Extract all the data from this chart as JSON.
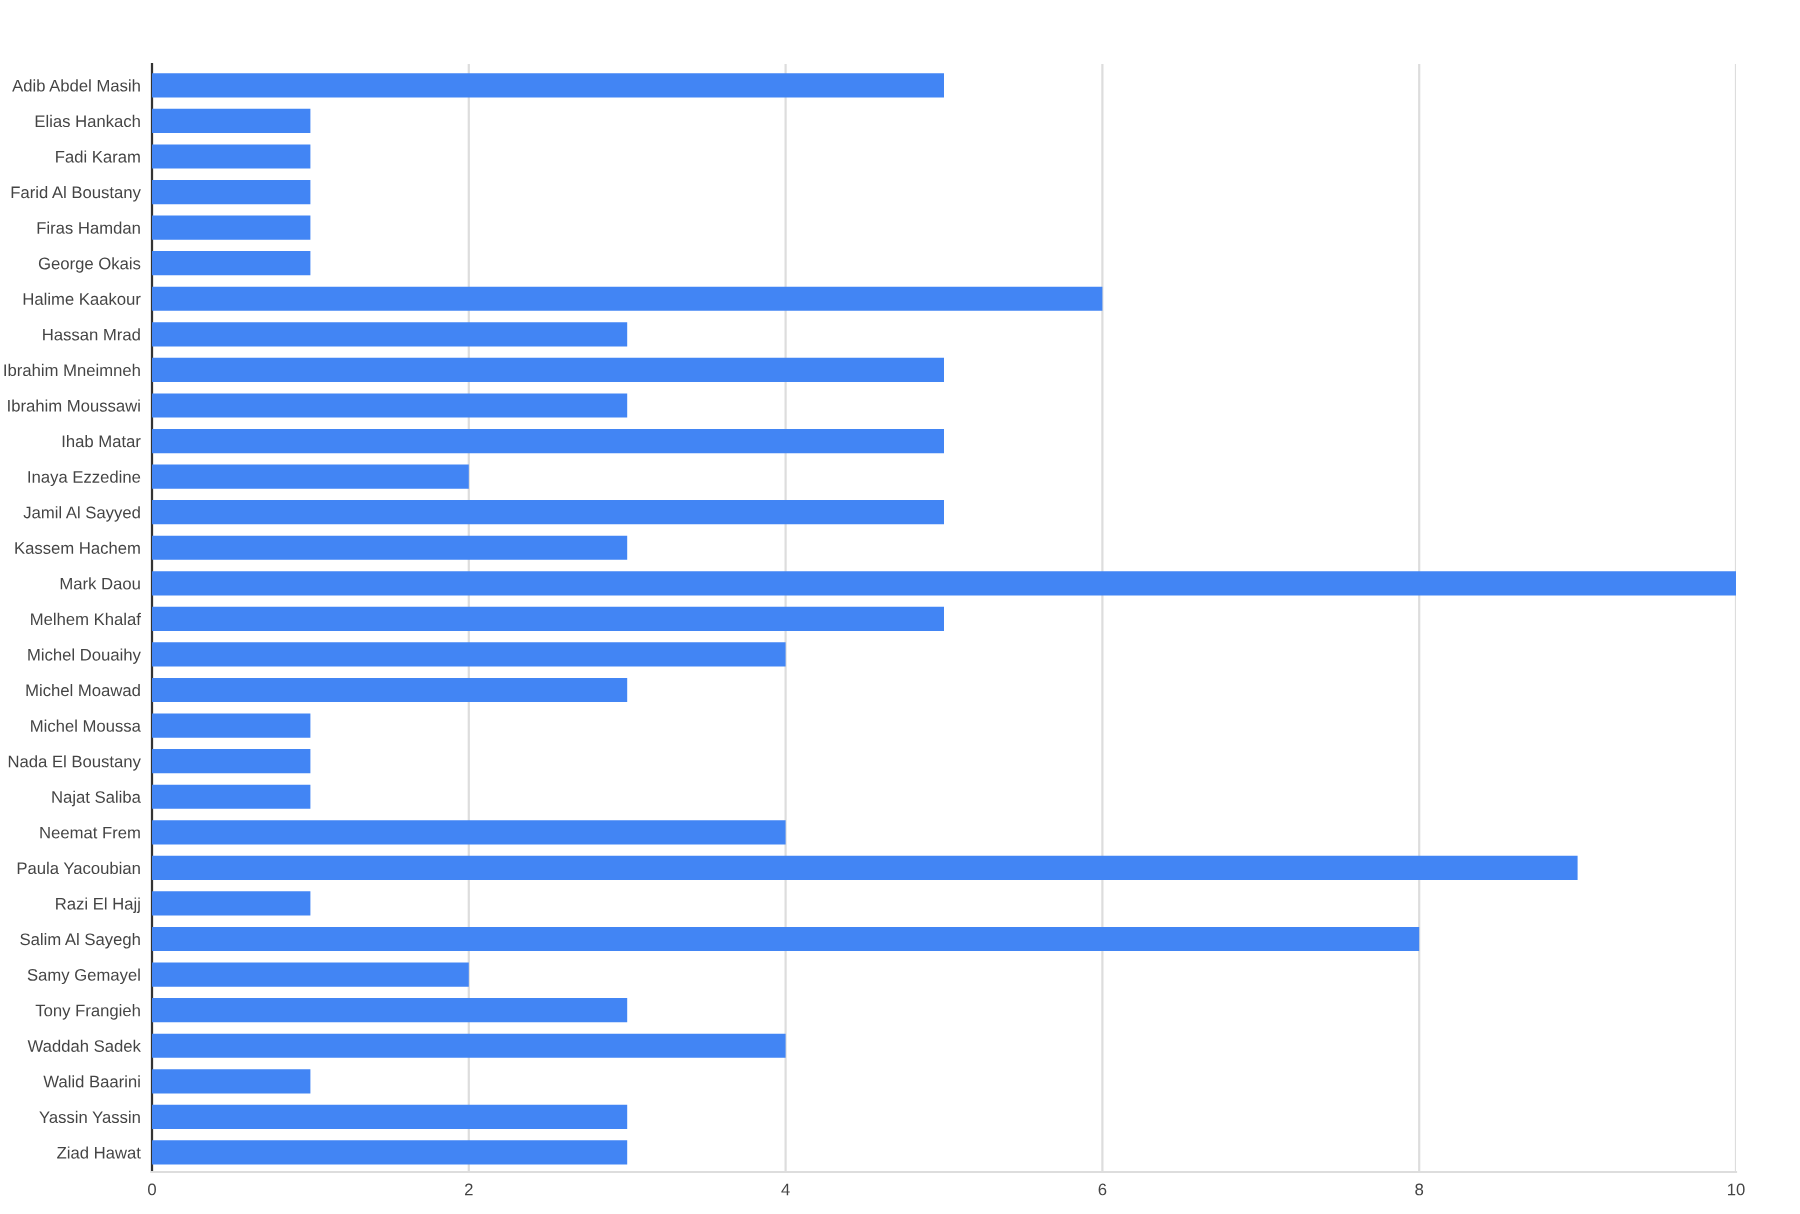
{
  "chart_data": {
    "type": "bar",
    "orientation": "horizontal",
    "categories": [
      "Adib Abdel Masih",
      "Elias Hankach",
      "Fadi Karam",
      "Farid Al Boustany",
      "Firas Hamdan",
      "George Okais",
      "Halime Kaakour",
      "Hassan Mrad",
      "Ibrahim Mneimneh",
      "Ibrahim Moussawi",
      "Ihab Matar",
      "Inaya Ezzedine",
      "Jamil Al Sayyed",
      "Kassem Hachem",
      "Mark Daou",
      "Melhem Khalaf",
      "Michel Douaihy",
      "Michel Moawad",
      "Michel Moussa",
      "Nada El Boustany",
      "Najat Saliba",
      "Neemat Frem",
      "Paula Yacoubian",
      "Razi El Hajj",
      "Salim Al Sayegh",
      "Samy Gemayel",
      "Tony Frangieh",
      "Waddah Sadek",
      "Walid Baarini",
      "Yassin Yassin",
      "Ziad Hawat"
    ],
    "values": [
      5,
      1,
      1,
      1,
      1,
      1,
      6,
      3,
      5,
      3,
      5,
      2,
      5,
      3,
      10,
      5,
      4,
      3,
      1,
      1,
      1,
      4,
      9,
      1,
      8,
      2,
      3,
      4,
      1,
      3,
      3
    ],
    "color": "#4285f4",
    "xlim": [
      0,
      10
    ],
    "xticks": [
      0,
      2,
      4,
      6,
      8,
      10
    ],
    "grid": "x",
    "legend": false
  }
}
